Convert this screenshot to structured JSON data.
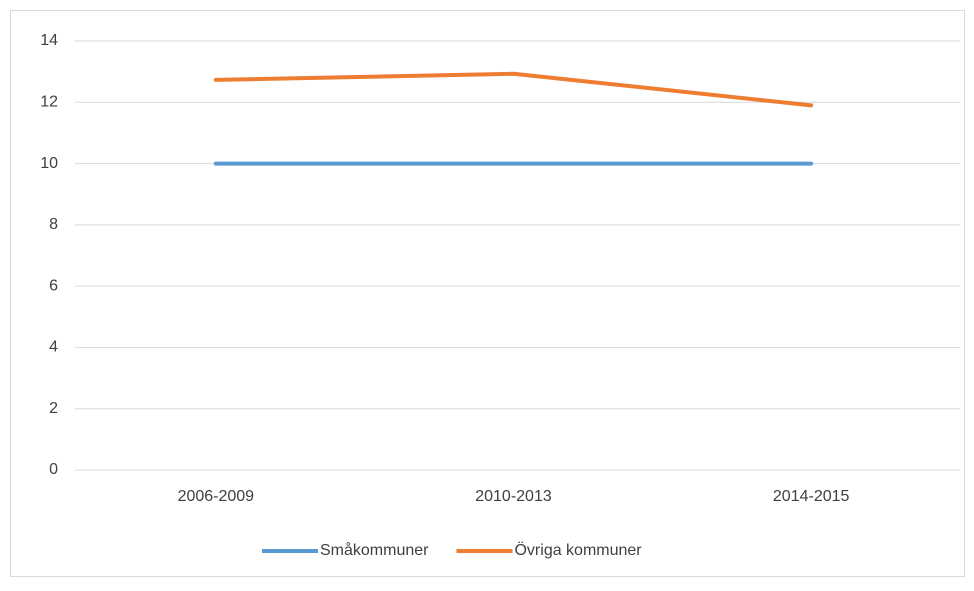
{
  "chart_data": {
    "type": "line",
    "categories": [
      "2006-2009",
      "2010-2013",
      "2014-2015"
    ],
    "series": [
      {
        "name": "Småkommuner",
        "color": "#5b9bd5",
        "values": [
          10,
          10,
          10
        ]
      },
      {
        "name": "Övriga kommuner",
        "color": "#ed7d31",
        "values": [
          12.73,
          12.93,
          11.9
        ]
      }
    ],
    "ylim": [
      0,
      14
    ],
    "yticks": [
      0,
      2,
      4,
      6,
      8,
      10,
      12,
      14
    ],
    "grid": true,
    "legend": "bottom"
  }
}
